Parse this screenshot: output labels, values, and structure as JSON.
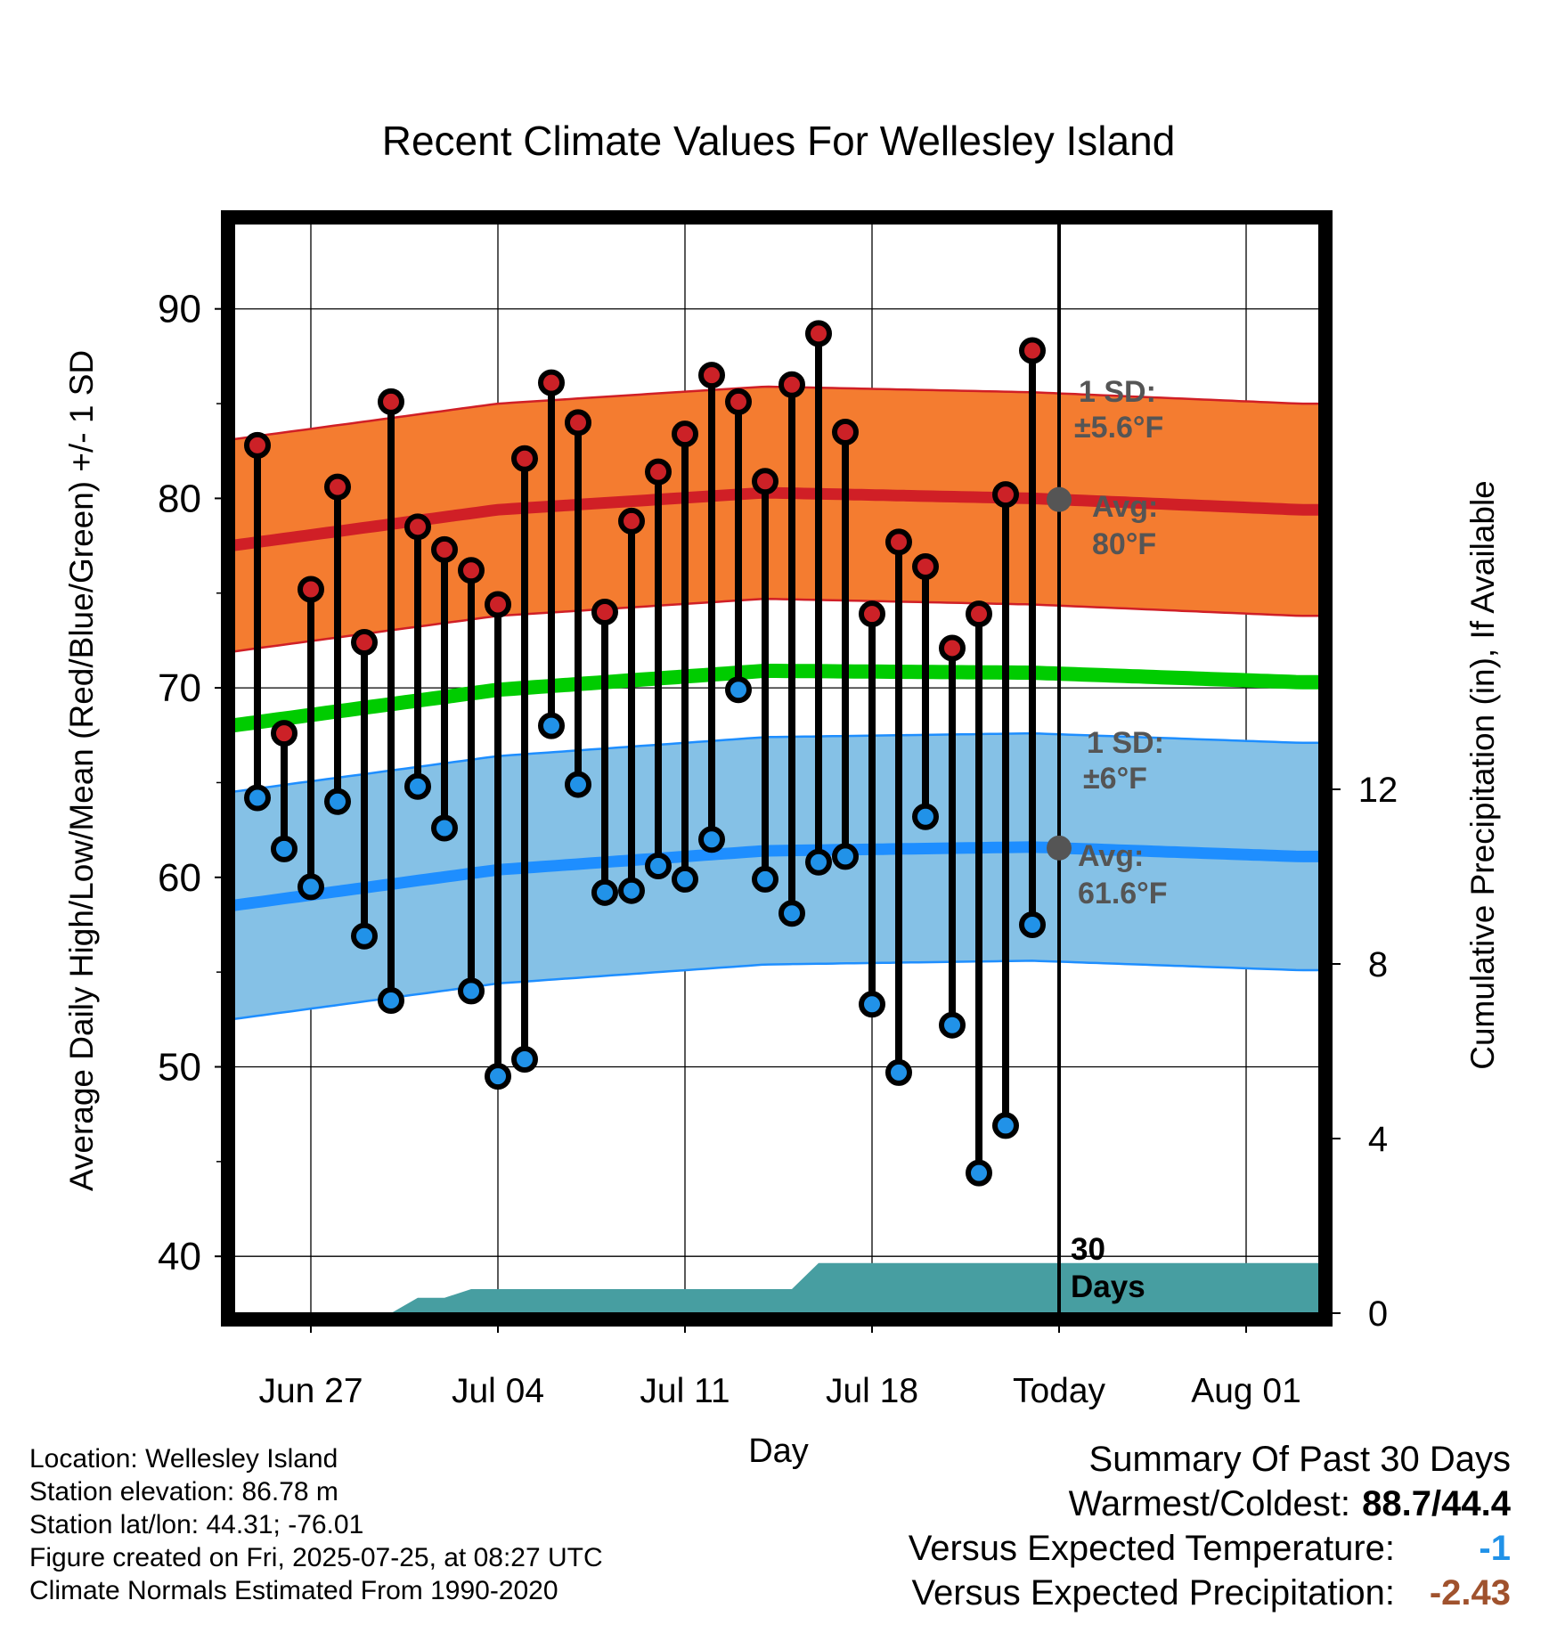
{
  "chart_data": {
    "type": "line",
    "title": "Recent Climate Values For Wellesley Island",
    "xlabel": "Day",
    "ylabel": "Average Daily High/Low/Mean (Red/Blue/Green) +/- 1 SD",
    "y2label": "Cumulative Precipitation (in), If Available",
    "ylim": [
      37,
      94.5
    ],
    "y_ticks": [
      "40",
      "50",
      "60",
      "70",
      "80",
      "90"
    ],
    "y2_ticks": [
      "0",
      "4",
      "8",
      "12"
    ],
    "x_tick_labels": [
      "Jun 27",
      "Jul 04",
      "Jul 11",
      "Jul 18",
      "Today",
      "Aug 01"
    ],
    "grid": true,
    "daily": {
      "x": [
        "Jun 25",
        "Jun 26",
        "Jun 27",
        "Jun 28",
        "Jun 29",
        "Jun 30",
        "Jul 01",
        "Jul 02",
        "Jul 03",
        "Jul 04",
        "Jul 05",
        "Jul 06",
        "Jul 07",
        "Jul 08",
        "Jul 09",
        "Jul 10",
        "Jul 11",
        "Jul 12",
        "Jul 13",
        "Jul 14",
        "Jul 15",
        "Jul 16",
        "Jul 17",
        "Jul 18",
        "Jul 19",
        "Jul 20",
        "Jul 21",
        "Jul 22",
        "Jul 23",
        "Jul 24"
      ],
      "highs": [
        82.8,
        67.6,
        75.2,
        80.6,
        72.4,
        85.1,
        78.5,
        77.3,
        76.2,
        74.4,
        82.1,
        86.1,
        84.0,
        74.0,
        78.8,
        81.4,
        83.4,
        86.5,
        85.1,
        80.9,
        86.0,
        88.7,
        83.5,
        73.9,
        77.7,
        76.4,
        72.1,
        73.9,
        80.2,
        87.8
      ],
      "lows": [
        64.2,
        61.5,
        59.5,
        64.0,
        56.9,
        53.5,
        64.8,
        62.6,
        54.0,
        49.5,
        50.4,
        68.0,
        64.9,
        59.2,
        59.3,
        60.6,
        59.9,
        62.0,
        69.9,
        59.9,
        58.1,
        60.8,
        61.1,
        53.3,
        49.7,
        63.2,
        52.2,
        44.4,
        46.9,
        57.5
      ]
    },
    "normals": {
      "x": [
        "Jun 24",
        "Jul 04",
        "Jul 14",
        "Jul 24",
        "Aug 03"
      ],
      "avg_high": [
        77.5,
        79.4,
        80.3,
        80.0,
        79.4
      ],
      "avg_low": [
        58.5,
        60.4,
        61.4,
        61.6,
        61.1
      ],
      "avg_mean": [
        68.0,
        69.9,
        70.9,
        70.8,
        70.3
      ],
      "high_sd": 5.6,
      "low_sd": 6.0
    },
    "precipitation_cumulative": {
      "x": [
        "Jun 24",
        "Jun 30",
        "Jul 01",
        "Jul 02",
        "Jul 03",
        "Jul 15",
        "Jul 16",
        "Aug 03"
      ],
      "values": [
        0.0,
        0.0,
        0.35,
        0.35,
        0.55,
        0.55,
        1.15,
        1.15
      ]
    },
    "annotations": {
      "high_sd_title": "1 SD:",
      "high_sd_value": "±5.6°F",
      "high_avg_title": "Avg:",
      "high_avg_value": "80°F",
      "low_sd_title": "1 SD:",
      "low_sd_value": "±6°F",
      "low_avg_title": "Avg:",
      "low_avg_value": "61.6°F",
      "window_count": "30",
      "window_unit": "Days"
    },
    "colors": {
      "high_band": "#f47c30",
      "low_band": "#85c1e6",
      "high_line": "#d01f26",
      "low_line": "#1e8eff",
      "mean_line": "#00cc00",
      "precip": "#479ea1",
      "high_dot": "#cc2127",
      "low_dot": "#2192e8",
      "warm_value": "#a0522d",
      "cold_value": "#2192e8"
    }
  },
  "footer": {
    "location": "Location: Wellesley Island",
    "elevation": "Station elevation: 86.78 m",
    "latlon": "Station lat/lon: 44.31; -76.01",
    "created": "Figure created on Fri, 2025-07-25, at 08:27 UTC",
    "normals": "Climate Normals Estimated From 1990-2020"
  },
  "summary": {
    "title": "Summary Of Past 30 Days",
    "warm_cold_label": "Warmest/Coldest:",
    "warm_cold_value": "88.7/44.4",
    "temp_label": "Versus Expected Temperature:",
    "temp_value": "-1",
    "precip_label": "Versus Expected Precipitation:",
    "precip_value": "-2.43"
  }
}
